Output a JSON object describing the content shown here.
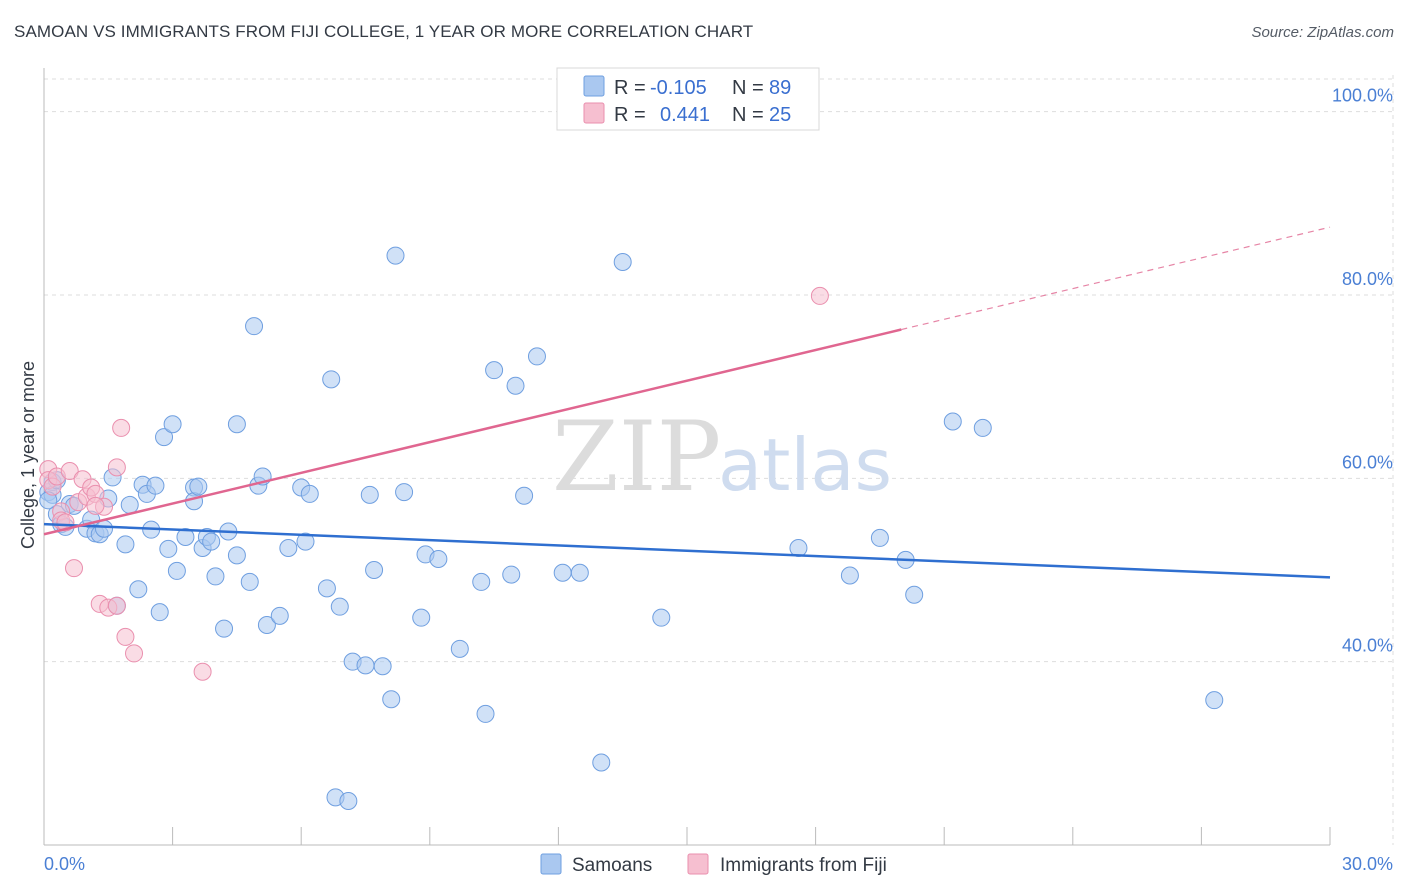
{
  "header": {
    "title": "SAMOAN VS IMMIGRANTS FROM FIJI COLLEGE, 1 YEAR OR MORE CORRELATION CHART",
    "source": "Source: ZipAtlas.com"
  },
  "watermark": {
    "part1": "ZIP",
    "part2": "atlas"
  },
  "colors": {
    "samoans_fill": "#aac8f0",
    "samoans_stroke": "#6f9fe0",
    "samoans_line": "#2f6fd0",
    "fiji_fill": "#f6bfd0",
    "fiji_stroke": "#ea8fae",
    "fiji_line": "#e06690",
    "tick_text": "#4a7fd4",
    "grid": "#dddddd"
  },
  "legend_top": {
    "row1": {
      "r_label": "R = ",
      "r_value": "-0.105",
      "n_label": "N = ",
      "n_value": "89"
    },
    "row2": {
      "r_label": "R = ",
      "r_value": "0.441",
      "n_label": "N = ",
      "n_value": "25"
    }
  },
  "chart_data": {
    "type": "scatter",
    "xlabel": "",
    "ylabel": "College, 1 year or more",
    "xlim": [
      0,
      30
    ],
    "ylim": [
      20,
      104
    ],
    "x_tick_labels": {
      "min": "0.0%",
      "max": "30.0%"
    },
    "y_ticks": [
      {
        "value": 40,
        "label": "40.0%"
      },
      {
        "value": 60,
        "label": "60.0%"
      },
      {
        "value": 80,
        "label": "80.0%"
      },
      {
        "value": 100,
        "label": "100.0%"
      }
    ],
    "grid": true,
    "legend": "bottom-center",
    "series": [
      {
        "name": "Samoans",
        "trend": {
          "x": [
            0,
            30
          ],
          "y": [
            55.0,
            49.2
          ],
          "dashed_from": null
        },
        "points": [
          [
            0.1,
            58.5
          ],
          [
            0.2,
            59.6
          ],
          [
            0.2,
            58.2
          ],
          [
            0.3,
            56.1
          ],
          [
            0.4,
            55.0
          ],
          [
            0.5,
            54.7
          ],
          [
            0.6,
            57.2
          ],
          [
            0.7,
            57.0
          ],
          [
            1.0,
            54.5
          ],
          [
            1.1,
            55.5
          ],
          [
            1.2,
            54.0
          ],
          [
            1.3,
            53.9
          ],
          [
            1.4,
            54.5
          ],
          [
            1.6,
            60.1
          ],
          [
            1.7,
            46.1
          ],
          [
            1.9,
            52.8
          ],
          [
            2.0,
            57.1
          ],
          [
            2.2,
            47.9
          ],
          [
            2.3,
            59.3
          ],
          [
            2.4,
            58.3
          ],
          [
            2.5,
            54.4
          ],
          [
            2.6,
            59.2
          ],
          [
            2.7,
            45.4
          ],
          [
            2.8,
            64.5
          ],
          [
            2.9,
            52.3
          ],
          [
            3.0,
            65.9
          ],
          [
            3.1,
            49.9
          ],
          [
            3.3,
            53.6
          ],
          [
            3.5,
            59.0
          ],
          [
            3.5,
            57.5
          ],
          [
            3.6,
            59.1
          ],
          [
            3.7,
            52.4
          ],
          [
            3.8,
            53.6
          ],
          [
            3.9,
            53.1
          ],
          [
            4.0,
            49.3
          ],
          [
            4.2,
            43.6
          ],
          [
            4.3,
            54.2
          ],
          [
            4.5,
            65.9
          ],
          [
            4.5,
            51.6
          ],
          [
            4.8,
            48.7
          ],
          [
            4.9,
            76.6
          ],
          [
            5.0,
            59.2
          ],
          [
            5.1,
            60.2
          ],
          [
            5.2,
            44.0
          ],
          [
            5.5,
            45.0
          ],
          [
            5.7,
            52.4
          ],
          [
            6.0,
            59.0
          ],
          [
            6.1,
            53.1
          ],
          [
            6.2,
            58.3
          ],
          [
            6.6,
            48.0
          ],
          [
            6.7,
            70.8
          ],
          [
            6.8,
            25.2
          ],
          [
            6.9,
            46.0
          ],
          [
            7.1,
            24.8
          ],
          [
            7.2,
            40.0
          ],
          [
            7.5,
            39.6
          ],
          [
            7.6,
            58.2
          ],
          [
            7.7,
            50.0
          ],
          [
            7.9,
            39.5
          ],
          [
            8.1,
            35.9
          ],
          [
            8.2,
            84.3
          ],
          [
            8.4,
            58.5
          ],
          [
            8.8,
            44.8
          ],
          [
            8.9,
            51.7
          ],
          [
            9.2,
            51.2
          ],
          [
            9.7,
            41.4
          ],
          [
            10.2,
            48.7
          ],
          [
            10.3,
            34.3
          ],
          [
            10.5,
            71.8
          ],
          [
            10.9,
            49.5
          ],
          [
            11.0,
            70.1
          ],
          [
            11.2,
            58.1
          ],
          [
            11.5,
            73.3
          ],
          [
            12.1,
            49.7
          ],
          [
            12.5,
            49.7
          ],
          [
            13.0,
            29.0
          ],
          [
            13.5,
            83.6
          ],
          [
            14.4,
            44.8
          ],
          [
            17.6,
            52.4
          ],
          [
            18.8,
            49.4
          ],
          [
            19.5,
            53.5
          ],
          [
            20.1,
            51.1
          ],
          [
            20.3,
            47.3
          ],
          [
            21.2,
            66.2
          ],
          [
            21.9,
            65.5
          ],
          [
            27.3,
            35.8
          ],
          [
            0.1,
            57.6
          ],
          [
            1.5,
            57.8
          ],
          [
            0.3,
            59.8
          ]
        ]
      },
      {
        "name": "Immigrants from Fiji",
        "trend": {
          "x": [
            0,
            30
          ],
          "y": [
            53.9,
            87.4
          ],
          "dashed_from": 20.0
        },
        "points": [
          [
            0.1,
            61.0
          ],
          [
            0.1,
            59.8
          ],
          [
            0.2,
            59.1
          ],
          [
            0.3,
            60.2
          ],
          [
            0.4,
            56.4
          ],
          [
            0.4,
            55.4
          ],
          [
            0.6,
            60.8
          ],
          [
            0.7,
            50.2
          ],
          [
            0.8,
            57.4
          ],
          [
            0.9,
            59.9
          ],
          [
            1.0,
            58.0
          ],
          [
            1.1,
            59.0
          ],
          [
            1.2,
            58.3
          ],
          [
            1.3,
            46.3
          ],
          [
            1.4,
            56.9
          ],
          [
            1.5,
            45.9
          ],
          [
            1.7,
            46.1
          ],
          [
            1.7,
            61.2
          ],
          [
            1.8,
            65.5
          ],
          [
            1.9,
            42.7
          ],
          [
            2.1,
            40.9
          ],
          [
            3.7,
            38.9
          ],
          [
            18.1,
            79.9
          ],
          [
            1.2,
            57.0
          ],
          [
            0.5,
            55.2
          ]
        ]
      }
    ]
  },
  "legend_bottom": [
    {
      "label": "Samoans"
    },
    {
      "label": "Immigrants from Fiji"
    }
  ]
}
